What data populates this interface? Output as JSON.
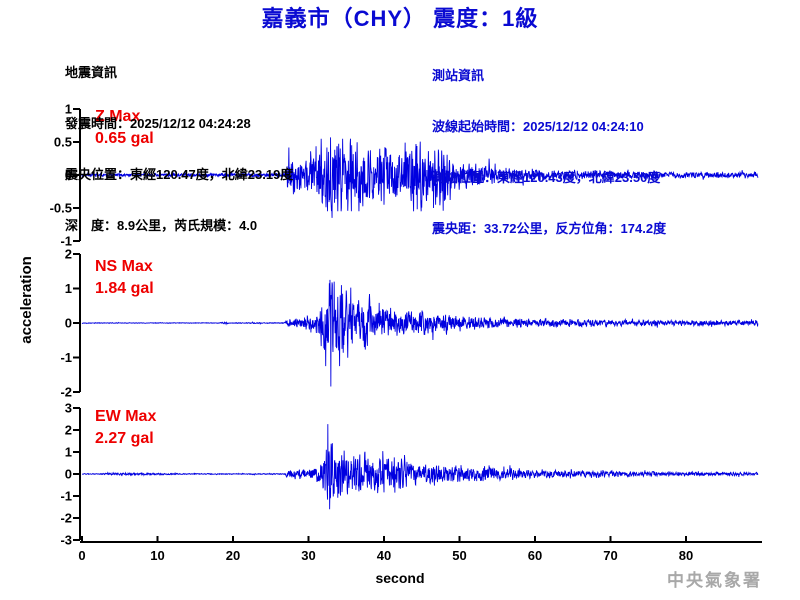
{
  "title": "嘉義市（CHY） 震度：1級",
  "earthquake_info": {
    "heading": "地震資訊",
    "origin_time": "發震時間：2025/12/12 04:24:28",
    "epicenter": "震央位置：東經120.47度，北緯23.19度",
    "depth_magnitude": "深　度：8.9公里，芮氏規模：4.0"
  },
  "station_info": {
    "heading": "測站資訊",
    "wave_start_time": "波線起始時間：2025/12/12 04:24:10",
    "station_location": "測站位置：東經120.43度，北緯23.50度",
    "distance_azimuth": "震央距：33.72公里，反方位角：174.2度"
  },
  "footer": {
    "agency": "中央氣象署"
  },
  "colors": {
    "accent_blue": "#0a0ad2",
    "trace_blue": "#0000e0",
    "label_red": "#ee0000",
    "watermark_gray": "#a8a8a8",
    "axis_black": "#000000"
  },
  "chart_data": {
    "type": "line",
    "xlabel": "second",
    "ylabel": "acceleration",
    "x_range": [
      0,
      89.5
    ],
    "xticks": [
      0,
      10,
      20,
      30,
      40,
      50,
      60,
      70,
      80
    ],
    "grid": false,
    "legend": "none",
    "channels": [
      {
        "name": "Z",
        "max_label": "Z Max",
        "max_value": "0.65 gal",
        "max_gal": 0.65,
        "ylim": [
          -1,
          1
        ],
        "yticks": [
          1,
          0.5,
          0,
          -0.5,
          -1
        ],
        "clamp": 0.55,
        "envelope": [
          [
            0,
            0.013
          ],
          [
            14,
            0.016
          ],
          [
            20,
            0.02
          ],
          [
            26.8,
            0.02
          ],
          [
            27.2,
            0.2
          ],
          [
            28.5,
            0.16
          ],
          [
            30,
            0.2
          ],
          [
            31.5,
            0.26
          ],
          [
            32.5,
            0.4
          ],
          [
            33.2,
            0.48
          ],
          [
            34,
            0.34
          ],
          [
            35,
            0.3
          ],
          [
            36.5,
            0.34
          ],
          [
            38,
            0.28
          ],
          [
            39.5,
            0.33
          ],
          [
            41,
            0.26
          ],
          [
            42.5,
            0.24
          ],
          [
            44,
            0.3
          ],
          [
            45,
            0.35
          ],
          [
            46,
            0.25
          ],
          [
            47.5,
            0.3
          ],
          [
            49,
            0.2
          ],
          [
            50.5,
            0.15
          ],
          [
            52,
            0.12
          ],
          [
            54,
            0.1
          ],
          [
            56,
            0.08
          ],
          [
            58,
            0.065
          ],
          [
            60,
            0.055
          ],
          [
            63,
            0.045
          ],
          [
            67,
            0.04
          ],
          [
            72,
            0.035
          ],
          [
            78,
            0.03
          ],
          [
            84,
            0.03
          ],
          [
            89.5,
            0.028
          ]
        ],
        "spikes": [
          [
            32.9,
            0.57
          ],
          [
            33.1,
            -0.65
          ],
          [
            35.7,
            0.45
          ],
          [
            40.1,
            0.42
          ]
        ]
      },
      {
        "name": "NS",
        "max_label": "NS Max",
        "max_value": "1.84 gal",
        "max_gal": 1.84,
        "ylim": [
          -2,
          2
        ],
        "yticks": [
          2,
          1,
          0,
          -1,
          -2
        ],
        "clamp": 1.25,
        "envelope": [
          [
            0,
            0.006
          ],
          [
            18,
            0.006
          ],
          [
            19,
            0.02
          ],
          [
            19.6,
            0.006
          ],
          [
            23.5,
            0.012
          ],
          [
            24,
            0.006
          ],
          [
            26.8,
            0.008
          ],
          [
            27.2,
            0.06
          ],
          [
            28.5,
            0.08
          ],
          [
            30,
            0.14
          ],
          [
            31,
            0.2
          ],
          [
            31.8,
            0.35
          ],
          [
            32.4,
            0.6
          ],
          [
            33,
            0.85
          ],
          [
            33.8,
            0.7
          ],
          [
            34.6,
            0.75
          ],
          [
            35.5,
            0.5
          ],
          [
            36.5,
            0.42
          ],
          [
            37.3,
            0.5
          ],
          [
            38.2,
            0.4
          ],
          [
            39,
            0.32
          ],
          [
            40,
            0.28
          ],
          [
            41,
            0.3
          ],
          [
            42,
            0.24
          ],
          [
            43,
            0.27
          ],
          [
            44,
            0.22
          ],
          [
            45.5,
            0.25
          ],
          [
            47,
            0.18
          ],
          [
            48.5,
            0.15
          ],
          [
            50,
            0.13
          ],
          [
            52,
            0.12
          ],
          [
            54,
            0.1
          ],
          [
            56.5,
            0.09
          ],
          [
            59,
            0.085
          ],
          [
            62,
            0.075
          ],
          [
            66,
            0.065
          ],
          [
            70,
            0.06
          ],
          [
            75,
            0.055
          ],
          [
            80,
            0.05
          ],
          [
            85,
            0.05
          ],
          [
            89.5,
            0.045
          ]
        ],
        "spikes": [
          [
            32.75,
            1.15
          ],
          [
            32.95,
            -1.84
          ],
          [
            33.4,
            1.2
          ],
          [
            34.1,
            -1.25
          ],
          [
            34.35,
            1.1
          ]
        ]
      },
      {
        "name": "EW",
        "max_label": "EW Max",
        "max_value": "2.27 gal",
        "max_gal": 2.27,
        "ylim": [
          -3,
          3
        ],
        "yticks": [
          3,
          2,
          1,
          0,
          -1,
          -2,
          -3
        ],
        "clamp": 1.45,
        "envelope": [
          [
            0,
            0.012
          ],
          [
            2.5,
            0.015
          ],
          [
            3.5,
            0.03
          ],
          [
            6,
            0.035
          ],
          [
            9,
            0.03
          ],
          [
            11.5,
            0.025
          ],
          [
            13,
            0.015
          ],
          [
            20,
            0.013
          ],
          [
            26.8,
            0.015
          ],
          [
            27.2,
            0.12
          ],
          [
            28.5,
            0.14
          ],
          [
            30,
            0.18
          ],
          [
            31,
            0.25
          ],
          [
            31.8,
            0.45
          ],
          [
            32.3,
            0.7
          ],
          [
            33,
            0.9
          ],
          [
            33.8,
            0.75
          ],
          [
            34.8,
            0.65
          ],
          [
            36,
            0.6
          ],
          [
            37,
            0.65
          ],
          [
            38,
            0.55
          ],
          [
            39.2,
            0.6
          ],
          [
            40.5,
            0.48
          ],
          [
            41.5,
            0.42
          ],
          [
            42.5,
            0.44
          ],
          [
            43.5,
            0.34
          ],
          [
            44.5,
            0.3
          ],
          [
            45.5,
            0.33
          ],
          [
            46.5,
            0.35
          ],
          [
            47.5,
            0.3
          ],
          [
            49,
            0.27
          ],
          [
            50.5,
            0.24
          ],
          [
            52,
            0.21
          ],
          [
            54,
            0.22
          ],
          [
            56,
            0.18
          ],
          [
            58,
            0.15
          ],
          [
            60,
            0.13
          ],
          [
            62.5,
            0.11
          ],
          [
            65,
            0.1
          ],
          [
            68,
            0.09
          ],
          [
            71,
            0.08
          ],
          [
            75,
            0.07
          ],
          [
            80,
            0.06
          ],
          [
            85,
            0.055
          ],
          [
            89.5,
            0.05
          ]
        ],
        "spikes": [
          [
            32.35,
            1.1
          ],
          [
            32.55,
            2.27
          ],
          [
            32.8,
            -1.6
          ],
          [
            33.15,
            1.4
          ]
        ]
      }
    ]
  }
}
